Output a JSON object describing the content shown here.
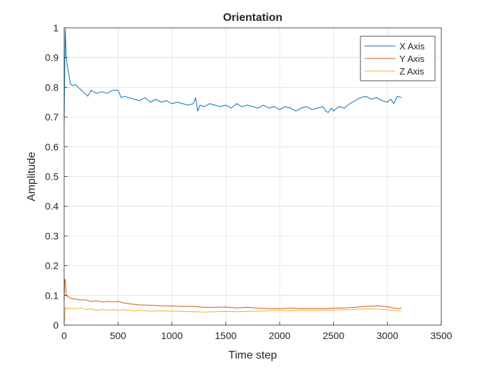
{
  "chart_data": {
    "type": "line",
    "title": "Orientation",
    "xlabel": "Time step",
    "ylabel": "Amplitude",
    "xlim": [
      0,
      3500
    ],
    "ylim": [
      0,
      1
    ],
    "xticks": [
      0,
      500,
      1000,
      1500,
      2000,
      2500,
      3000,
      3500
    ],
    "yticks": [
      0,
      0.1,
      0.2,
      0.3,
      0.4,
      0.5,
      0.6,
      0.7,
      0.8,
      0.9,
      1
    ],
    "ytick_labels": [
      "0",
      "0.1",
      "0.2",
      "0.3",
      "0.4",
      "0.5",
      "0.6",
      "0.7",
      "0.8",
      "0.9",
      "1"
    ],
    "grid": true,
    "legend_position": "top-right",
    "series": [
      {
        "name": "X Axis",
        "color": "#0072BD",
        "x": [
          0,
          10,
          20,
          30,
          45,
          60,
          80,
          100,
          130,
          160,
          190,
          220,
          250,
          300,
          350,
          400,
          450,
          500,
          530,
          560,
          600,
          650,
          700,
          750,
          800,
          850,
          900,
          950,
          1000,
          1050,
          1100,
          1150,
          1200,
          1220,
          1240,
          1260,
          1300,
          1350,
          1400,
          1450,
          1500,
          1550,
          1600,
          1650,
          1700,
          1750,
          1800,
          1850,
          1900,
          1950,
          2000,
          2050,
          2100,
          2150,
          2200,
          2250,
          2300,
          2350,
          2400,
          2430,
          2450,
          2480,
          2500,
          2550,
          2600,
          2650,
          2700,
          2750,
          2800,
          2850,
          2900,
          2950,
          3000,
          3030,
          3060,
          3090,
          3130
        ],
        "y": [
          0.68,
          0.995,
          0.9,
          0.87,
          0.84,
          0.81,
          0.805,
          0.81,
          0.8,
          0.79,
          0.78,
          0.77,
          0.79,
          0.78,
          0.785,
          0.78,
          0.79,
          0.79,
          0.765,
          0.77,
          0.765,
          0.76,
          0.755,
          0.765,
          0.75,
          0.76,
          0.75,
          0.755,
          0.745,
          0.75,
          0.745,
          0.74,
          0.745,
          0.765,
          0.72,
          0.74,
          0.735,
          0.745,
          0.74,
          0.735,
          0.74,
          0.73,
          0.745,
          0.735,
          0.74,
          0.735,
          0.73,
          0.74,
          0.73,
          0.735,
          0.725,
          0.735,
          0.73,
          0.72,
          0.73,
          0.735,
          0.725,
          0.73,
          0.735,
          0.72,
          0.715,
          0.73,
          0.72,
          0.735,
          0.73,
          0.745,
          0.755,
          0.765,
          0.77,
          0.76,
          0.765,
          0.755,
          0.75,
          0.76,
          0.745,
          0.77,
          0.765
        ]
      },
      {
        "name": "Y Axis",
        "color": "#D95319",
        "x": [
          0,
          5,
          10,
          20,
          40,
          60,
          100,
          150,
          200,
          250,
          300,
          350,
          400,
          450,
          500,
          550,
          600,
          650,
          700,
          800,
          900,
          1000,
          1100,
          1200,
          1300,
          1400,
          1500,
          1600,
          1700,
          1800,
          1900,
          2000,
          2100,
          2200,
          2300,
          2400,
          2500,
          2600,
          2700,
          2800,
          2900,
          3000,
          3050,
          3100,
          3130
        ],
        "y": [
          0.08,
          0.155,
          0.15,
          0.1,
          0.095,
          0.09,
          0.088,
          0.085,
          0.085,
          0.08,
          0.082,
          0.078,
          0.08,
          0.078,
          0.08,
          0.075,
          0.072,
          0.07,
          0.068,
          0.067,
          0.065,
          0.064,
          0.063,
          0.063,
          0.06,
          0.06,
          0.061,
          0.058,
          0.06,
          0.057,
          0.055,
          0.055,
          0.057,
          0.055,
          0.056,
          0.055,
          0.057,
          0.058,
          0.06,
          0.063,
          0.065,
          0.062,
          0.058,
          0.055,
          0.058
        ]
      },
      {
        "name": "Z Axis",
        "color": "#EDB120",
        "x": [
          0,
          5,
          10,
          20,
          40,
          60,
          100,
          150,
          200,
          250,
          300,
          350,
          400,
          450,
          500,
          550,
          600,
          650,
          700,
          800,
          900,
          1000,
          1100,
          1200,
          1300,
          1400,
          1500,
          1600,
          1700,
          1800,
          1900,
          2000,
          2100,
          2200,
          2300,
          2400,
          2500,
          2600,
          2700,
          2800,
          2900,
          3000,
          3050,
          3100,
          3130
        ],
        "y": [
          0.01,
          0.015,
          0.06,
          0.055,
          0.058,
          0.055,
          0.056,
          0.058,
          0.052,
          0.055,
          0.05,
          0.053,
          0.05,
          0.052,
          0.05,
          0.052,
          0.05,
          0.048,
          0.05,
          0.047,
          0.048,
          0.047,
          0.046,
          0.045,
          0.044,
          0.045,
          0.046,
          0.045,
          0.046,
          0.047,
          0.048,
          0.05,
          0.048,
          0.05,
          0.049,
          0.05,
          0.051,
          0.052,
          0.053,
          0.055,
          0.054,
          0.052,
          0.05,
          0.048,
          0.049
        ]
      }
    ]
  }
}
